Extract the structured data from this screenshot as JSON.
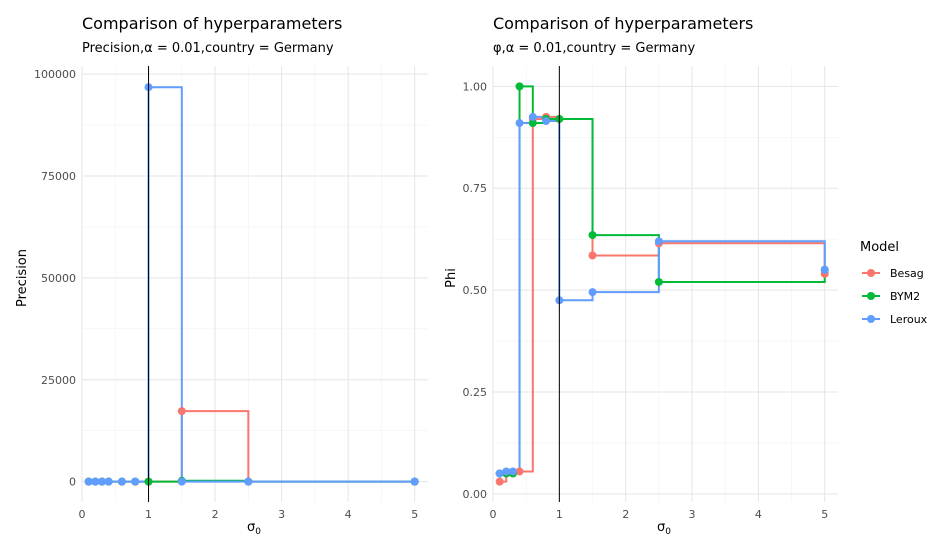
{
  "chart_data": [
    {
      "type": "line",
      "step": true,
      "title": "Comparison of hyperparameters",
      "subtitle": "Precision,α = 0.01,country = Germany",
      "xlabel": "σ",
      "xlabel_sub": "0",
      "ylabel": "Precision",
      "xlim": [
        0,
        5.2
      ],
      "ylim": [
        -5000,
        102000
      ],
      "xticks": [
        0,
        1,
        2,
        3,
        4,
        5
      ],
      "xtick_labels": [
        "0",
        "1",
        "2",
        "3",
        "4",
        "5"
      ],
      "yticks": [
        0,
        25000,
        50000,
        75000,
        100000
      ],
      "ytick_labels": [
        "0",
        "25000",
        "50000",
        "75000",
        "100000"
      ],
      "vline": 1,
      "grid": true,
      "series": [
        {
          "name": "Besag",
          "color": "#F8766D",
          "x": [
            0.1,
            0.2,
            0.3,
            0.4,
            0.6,
            0.8,
            1,
            1.5,
            2.5,
            5
          ],
          "y": [
            0,
            0,
            0,
            0,
            0,
            0,
            0,
            17300,
            0,
            0
          ]
        },
        {
          "name": "BYM2",
          "color": "#00BA38",
          "x": [
            0.1,
            0.2,
            0.3,
            0.4,
            0.6,
            0.8,
            1,
            1.5,
            2.5,
            5
          ],
          "y": [
            0,
            0,
            0,
            0,
            0,
            0,
            0,
            200,
            0,
            0
          ]
        },
        {
          "name": "Leroux",
          "color": "#619CFF",
          "x": [
            0.1,
            0.2,
            0.3,
            0.4,
            0.6,
            0.8,
            1,
            1.5,
            2.5,
            5
          ],
          "y": [
            0,
            0,
            0,
            0,
            0,
            0,
            96800,
            0,
            0,
            0
          ]
        }
      ]
    },
    {
      "type": "line",
      "step": true,
      "title": "Comparison of hyperparameters",
      "subtitle": "φ,α = 0.01,country = Germany",
      "xlabel": "σ",
      "xlabel_sub": "0",
      "ylabel": "Phi",
      "xlim": [
        0,
        5.2
      ],
      "ylim": [
        -0.02,
        1.05
      ],
      "xticks": [
        0,
        1,
        2,
        3,
        4,
        5
      ],
      "xtick_labels": [
        "0",
        "1",
        "2",
        "3",
        "4",
        "5"
      ],
      "yticks": [
        0,
        0.25,
        0.5,
        0.75,
        1
      ],
      "ytick_labels": [
        "0.00",
        "0.25",
        "0.50",
        "0.75",
        "1.00"
      ],
      "vline": 1,
      "grid": true,
      "series": [
        {
          "name": "Besag",
          "color": "#F8766D",
          "x": [
            0.1,
            0.2,
            0.3,
            0.4,
            0.6,
            0.8,
            1,
            1.5,
            2.5,
            5
          ],
          "y": [
            0.03,
            0.05,
            0.05,
            0.055,
            0.92,
            0.925,
            0.92,
            0.585,
            0.615,
            0.54
          ]
        },
        {
          "name": "BYM2",
          "color": "#00BA38",
          "x": [
            0.1,
            0.2,
            0.3,
            0.4,
            0.6,
            0.8,
            1,
            1.5,
            2.5,
            5
          ],
          "y": [
            0.05,
            0.05,
            0.05,
            1.0,
            0.91,
            0.92,
            0.92,
            0.635,
            0.52,
            0.55
          ]
        },
        {
          "name": "Leroux",
          "color": "#619CFF",
          "x": [
            0.1,
            0.2,
            0.3,
            0.4,
            0.6,
            0.8,
            1,
            1.5,
            2.5,
            5
          ],
          "y": [
            0.05,
            0.055,
            0.055,
            0.91,
            0.925,
            0.915,
            0.475,
            0.495,
            0.62,
            0.55
          ]
        }
      ]
    }
  ],
  "legend": {
    "title": "Model",
    "placement": "right",
    "items": [
      {
        "label": "Besag",
        "color": "#F8766D"
      },
      {
        "label": "BYM2",
        "color": "#00BA38"
      },
      {
        "label": "Leroux",
        "color": "#619CFF"
      }
    ]
  }
}
